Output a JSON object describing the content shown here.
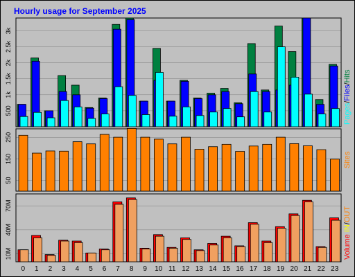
{
  "chart_data": [
    {
      "type": "bar",
      "title": "Hourly usage for September 2025",
      "categories": [
        "0",
        "1",
        "2",
        "3",
        "4",
        "5",
        "6",
        "7",
        "8",
        "9",
        "10",
        "11",
        "12",
        "13",
        "14",
        "15",
        "16",
        "17",
        "18",
        "19",
        "20",
        "21",
        "22",
        "23"
      ],
      "ylim": [
        0,
        3400
      ],
      "yticks": [
        500,
        1000,
        1500,
        2000,
        2500,
        3000
      ],
      "ytick_labels": [
        "500",
        "1k",
        "1.5k",
        "2k",
        "2.5k",
        "3k"
      ],
      "right_label_parts": [
        "Pages",
        "Files",
        "Hits"
      ],
      "series": [
        {
          "name": "Hits",
          "color": "#008040",
          "values": [
            700,
            2150,
            500,
            1600,
            1300,
            600,
            900,
            3200,
            3400,
            800,
            2450,
            800,
            1450,
            900,
            1050,
            1200,
            750,
            2600,
            1150,
            3150,
            2350,
            3400,
            850,
            1950
          ]
        },
        {
          "name": "Files",
          "color": "#0000ff",
          "values": [
            700,
            2050,
            500,
            1100,
            1000,
            580,
            880,
            3050,
            3350,
            800,
            1450,
            800,
            1420,
            880,
            1000,
            1100,
            720,
            1650,
            1100,
            1150,
            1300,
            3400,
            700,
            1900
          ]
        },
        {
          "name": "Pages",
          "color": "#00ffff",
          "values": [
            320,
            450,
            280,
            820,
            620,
            260,
            400,
            1250,
            980,
            380,
            1700,
            330,
            620,
            350,
            460,
            570,
            310,
            1100,
            460,
            2500,
            1550,
            1020,
            400,
            570
          ]
        }
      ]
    },
    {
      "type": "bar",
      "ylim": [
        0,
        290
      ],
      "yticks": [
        50,
        150,
        250
      ],
      "ytick_labels": [
        "50",
        "150",
        "250"
      ],
      "right_label": "Sites",
      "series": [
        {
          "name": "Sites",
          "color": "#ff8000",
          "values": [
            260,
            177,
            187,
            186,
            230,
            220,
            264,
            251,
            292,
            251,
            242,
            220,
            251,
            195,
            207,
            218,
            185,
            210,
            218,
            251,
            221,
            211,
            193,
            149
          ]
        }
      ]
    },
    {
      "type": "bar",
      "ylim": [
        0,
        85
      ],
      "yticks": [
        10,
        40,
        70
      ],
      "ytick_labels": [
        "10M",
        "40M",
        "70M"
      ],
      "right_label_parts": [
        "Volume",
        "IN",
        "OUT"
      ],
      "series": [
        {
          "name": "Volume",
          "color": "#ff0000",
          "values": [
            15,
            33,
            9,
            27,
            26,
            11,
            16,
            75,
            80,
            17,
            34,
            18,
            30,
            15,
            23,
            32,
            20,
            49,
            26,
            44,
            60,
            77,
            19,
            55
          ]
        },
        {
          "name": "IN",
          "color": "#ff8000",
          "values": [
            15,
            30,
            8,
            26,
            24,
            11,
            15,
            72,
            78,
            16,
            32,
            17,
            28,
            14,
            21,
            30,
            19,
            47,
            24,
            42,
            58,
            75,
            18,
            52
          ]
        }
      ]
    }
  ],
  "colors": {
    "background": "#c0c0c0",
    "plot_bg": "#c0c0c0",
    "title": "#0000ff",
    "hits": "#008040",
    "files": "#0000ff",
    "pages": "#00ffff",
    "sites": "#ff8000",
    "volume": "#ff0000",
    "in": "#ff8000",
    "out": "#ffff00"
  }
}
